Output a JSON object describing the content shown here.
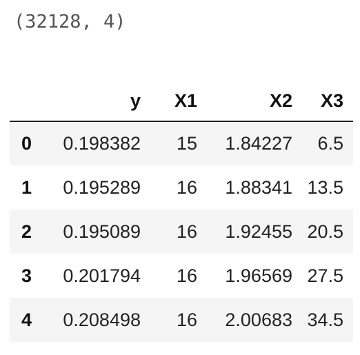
{
  "output": {
    "shape_text": "(32128, 4)"
  },
  "table": {
    "index_header": "",
    "columns": [
      "y",
      "X1",
      "X2",
      "X3"
    ],
    "rows": [
      {
        "index": "0",
        "y": "0.198382",
        "X1": "15",
        "X2": "1.84227",
        "X3": "6.5"
      },
      {
        "index": "1",
        "y": "0.195289",
        "X1": "16",
        "X2": "1.88341",
        "X3": "13.5"
      },
      {
        "index": "2",
        "y": "0.195089",
        "X1": "16",
        "X2": "1.92455",
        "X3": "20.5"
      },
      {
        "index": "3",
        "y": "0.201794",
        "X1": "16",
        "X2": "1.96569",
        "X3": "27.5"
      },
      {
        "index": "4",
        "y": "0.208498",
        "X1": "16",
        "X2": "2.00683",
        "X3": "34.5"
      }
    ]
  },
  "colors": {
    "stripe": "#f5f5f5",
    "text": "#222222",
    "shape_text": "#555555"
  }
}
